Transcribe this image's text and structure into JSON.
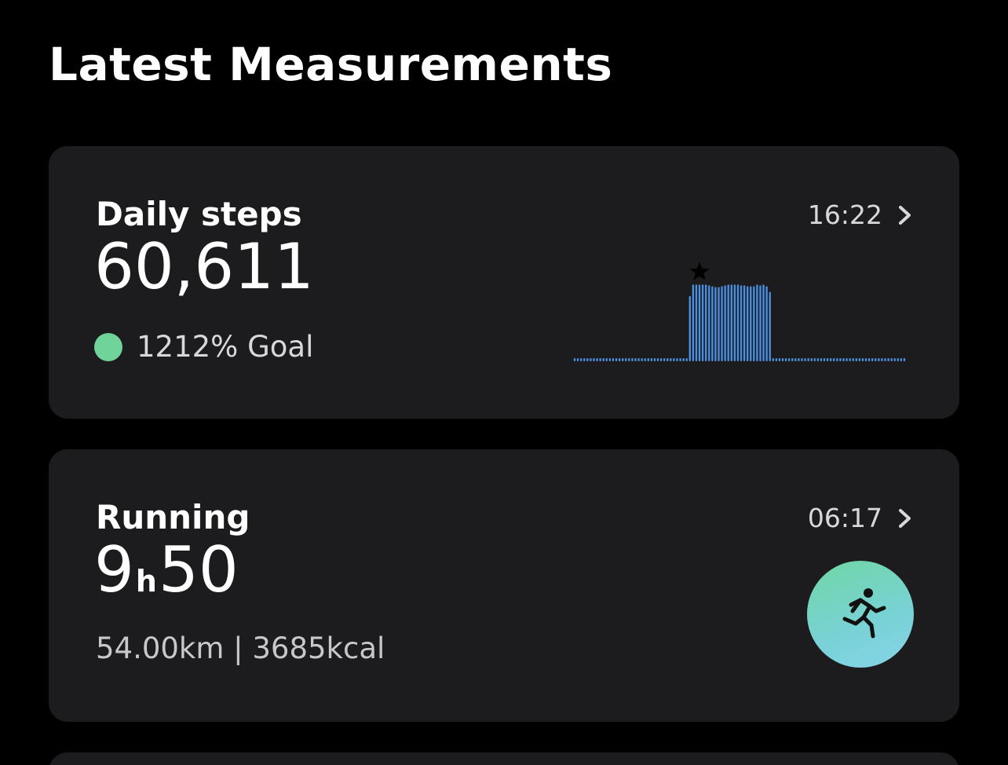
{
  "section": {
    "title": "Latest Measurements"
  },
  "steps_card": {
    "label": "Daily steps",
    "value": "60,611",
    "time": "16:22",
    "goal_text": "1212% Goal",
    "goal_color": "#6fd39a",
    "chevron_icon": "chevron-right-icon",
    "star_icon": "star-icon"
  },
  "running_card": {
    "label": "Running",
    "value_hours": "9",
    "value_unit": "h",
    "value_minutes": "50",
    "time": "06:17",
    "subtitle": "54.00km | 3685kcal",
    "icon": "running-person-icon",
    "chevron_icon": "chevron-right-icon"
  },
  "chart_data": {
    "type": "bar",
    "color": "#4a90e2",
    "values": [
      0,
      0,
      0,
      0,
      0,
      0,
      0,
      0,
      0,
      0,
      0,
      0,
      0,
      0,
      0,
      0,
      0,
      0,
      0,
      0,
      0,
      0,
      0,
      0,
      0,
      0,
      0,
      0,
      0,
      0,
      0,
      0,
      0,
      0,
      0,
      0,
      80,
      94,
      94,
      94,
      94,
      94,
      93,
      92,
      91,
      91,
      92,
      93,
      94,
      94,
      94,
      94,
      93,
      93,
      92,
      92,
      92,
      94,
      93,
      94,
      92,
      85,
      0,
      0,
      0,
      0,
      0,
      0,
      0,
      0,
      0,
      0,
      0,
      0,
      0,
      0,
      0,
      0,
      0,
      0,
      0,
      0,
      0,
      0,
      0,
      0,
      0,
      0,
      0,
      0,
      0,
      0,
      0,
      0,
      0,
      0,
      0,
      0,
      0,
      0,
      0,
      0,
      0,
      0
    ],
    "max_value": 100,
    "star_index": 39
  }
}
